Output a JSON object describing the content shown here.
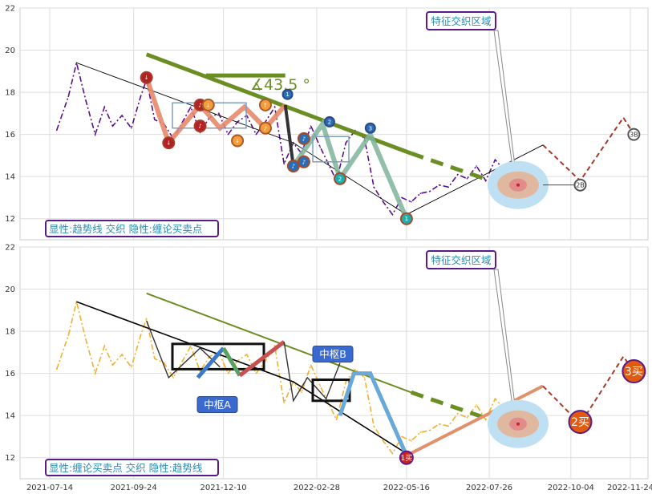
{
  "chart_data": [
    {
      "type": "line",
      "panel": "top",
      "ylim": [
        11,
        22
      ],
      "yticks": [
        12,
        14,
        16,
        18,
        20,
        22
      ],
      "grid": true,
      "caption": "显性:趋势线 交织 隐性:缠论买卖点",
      "annotation_box": "特征交织区域",
      "angle_label": "∡43.5 °",
      "colors": {
        "price": "#5a0f8a",
        "trend": "#6b8e23",
        "red": "#b22222",
        "blue": "#2a6db3",
        "orange": "#f59b3a",
        "teal": "#1ab0b0"
      },
      "series": [
        {
          "x": [
            "2021-07-20",
            "2021-07-30",
            "2021-08-06",
            "2021-08-14",
            "2021-08-22",
            "2021-08-30",
            "2021-09-06",
            "2021-09-14",
            "2021-09-22",
            "2021-09-30",
            "2021-10-05",
            "2021-10-12",
            "2021-10-20",
            "2021-10-28",
            "2021-11-05",
            "2021-11-12",
            "2021-11-20",
            "2021-11-28",
            "2021-12-06",
            "2021-12-14",
            "2021-12-22",
            "2021-12-30",
            "2022-01-07",
            "2022-01-15",
            "2022-01-23",
            "2022-01-31",
            "2022-02-08",
            "2022-02-15",
            "2022-02-23",
            "2022-03-03",
            "2022-03-10",
            "2022-03-17",
            "2022-03-25",
            "2022-04-02",
            "2022-04-10",
            "2022-04-18",
            "2022-04-26",
            "2022-05-04",
            "2022-05-12",
            "2022-05-20",
            "2022-05-28",
            "2022-06-05",
            "2022-06-13",
            "2022-06-21",
            "2022-06-29",
            "2022-07-07",
            "2022-07-15",
            "2022-07-23",
            "2022-07-31",
            "2022-08-08",
            "2022-08-15",
            "2022-08-22"
          ],
          "values": [
            16.2,
            17.8,
            19.4,
            17.6,
            16.0,
            17.3,
            16.4,
            16.9,
            16.3,
            17.8,
            18.6,
            16.7,
            16.5,
            15.8,
            16.6,
            17.3,
            16.1,
            16.8,
            17.0,
            16.0,
            16.6,
            16.9,
            16.0,
            16.6,
            17.3,
            14.6,
            15.6,
            15.1,
            16.4,
            15.4,
            14.6,
            13.8,
            15.6,
            16.2,
            15.8,
            13.5,
            12.8,
            12.2,
            13.0,
            12.8,
            13.2,
            13.3,
            13.6,
            13.5,
            14.1,
            13.9,
            14.5,
            13.8,
            14.8,
            14.3,
            14.1,
            13.6
          ]
        }
      ]
    },
    {
      "type": "line",
      "panel": "bottom",
      "ylim": [
        11,
        22
      ],
      "yticks": [
        12,
        14,
        16,
        18,
        20,
        22
      ],
      "grid": true,
      "caption": "显性:缠论买卖点 交织 隐性:趋势线",
      "annotation_box": "特征交织区域",
      "zhongshu": [
        "中枢A",
        "中枢B"
      ],
      "buy_points": [
        "1买",
        "2买",
        "3买"
      ],
      "colors": {
        "price": "#f0b030",
        "trend": "#6b8e23",
        "red": "#b22222",
        "blue": "#3a7ac8",
        "green": "#5aa060",
        "orange": "#f08040"
      },
      "series": [
        {
          "x": [
            "2021-07-20",
            "2021-07-30",
            "2021-08-06",
            "2021-08-14",
            "2021-08-22",
            "2021-08-30",
            "2021-09-06",
            "2021-09-14",
            "2021-09-22",
            "2021-09-30",
            "2021-10-05",
            "2021-10-12",
            "2021-10-20",
            "2021-10-28",
            "2021-11-05",
            "2021-11-12",
            "2021-11-20",
            "2021-11-28",
            "2021-12-06",
            "2021-12-14",
            "2021-12-22",
            "2021-12-30",
            "2022-01-07",
            "2022-01-15",
            "2022-01-23",
            "2022-01-31",
            "2022-02-08",
            "2022-02-15",
            "2022-02-23",
            "2022-03-03",
            "2022-03-10",
            "2022-03-17",
            "2022-03-25",
            "2022-04-02",
            "2022-04-10",
            "2022-04-18",
            "2022-04-26",
            "2022-05-04",
            "2022-05-12",
            "2022-05-20",
            "2022-05-28",
            "2022-06-05",
            "2022-06-13",
            "2022-06-21",
            "2022-06-29",
            "2022-07-07",
            "2022-07-15",
            "2022-07-23",
            "2022-07-31",
            "2022-08-08",
            "2022-08-15",
            "2022-08-22"
          ],
          "values": [
            16.2,
            17.8,
            19.4,
            17.6,
            16.0,
            17.3,
            16.4,
            16.9,
            16.3,
            17.8,
            18.6,
            16.7,
            16.5,
            15.8,
            16.6,
            17.3,
            16.1,
            16.8,
            17.0,
            16.0,
            16.6,
            16.9,
            16.0,
            16.6,
            17.3,
            14.6,
            15.6,
            15.1,
            16.4,
            15.4,
            14.6,
            13.8,
            15.6,
            16.2,
            15.8,
            13.5,
            12.8,
            12.2,
            13.0,
            12.8,
            13.2,
            13.3,
            13.6,
            13.5,
            14.1,
            13.9,
            14.5,
            13.8,
            14.8,
            14.3,
            14.1,
            13.6
          ]
        }
      ],
      "xticks": [
        "2021-07-14",
        "2021-09-24",
        "2021-12-10",
        "2022-02-28",
        "2022-05-16",
        "2022-07-26",
        "2022-10-04",
        "2022-11-24"
      ]
    }
  ]
}
